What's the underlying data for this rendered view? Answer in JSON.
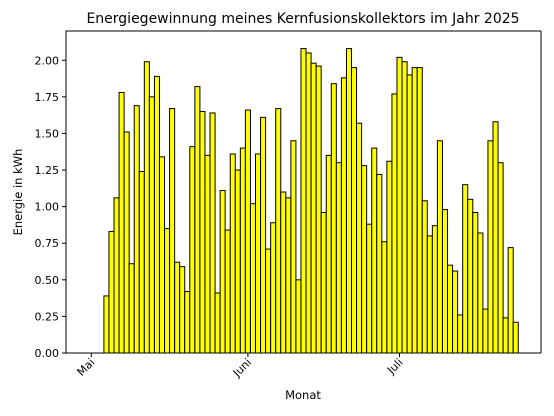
{
  "chart_data": {
    "type": "bar",
    "title": "Energiegewinnung meines Kernfusionskollektors im Jahr 2025",
    "xlabel": "Monat",
    "ylabel": "Energie in kWh",
    "x_start": "2025-05-04",
    "x_range": [
      "2025-04-26",
      "2025-07-29"
    ],
    "ylim": [
      0,
      2.2
    ],
    "y_ticks": [
      0.0,
      0.25,
      0.5,
      0.75,
      1.0,
      1.25,
      1.5,
      1.75,
      2.0
    ],
    "y_tick_labels": [
      "0.00",
      "0.25",
      "0.50",
      "0.75",
      "1.00",
      "1.25",
      "1.50",
      "1.75",
      "2.00"
    ],
    "x_ticks": [
      {
        "date": "2025-05-01",
        "label": "Mai"
      },
      {
        "date": "2025-06-01",
        "label": "Juni"
      },
      {
        "date": "2025-07-01",
        "label": "Juli"
      }
    ],
    "bar_color": "#ffff00",
    "edge_color": "#000000",
    "grid": false,
    "values": [
      0.39,
      0.83,
      1.06,
      1.78,
      1.51,
      0.61,
      1.69,
      1.24,
      1.99,
      1.75,
      1.89,
      1.34,
      0.85,
      1.67,
      0.62,
      0.59,
      0.42,
      1.41,
      1.82,
      1.65,
      1.35,
      1.64,
      0.41,
      1.11,
      0.84,
      1.36,
      1.25,
      1.4,
      1.66,
      1.02,
      1.36,
      1.61,
      0.71,
      0.89,
      1.67,
      1.1,
      1.06,
      1.45,
      0.5,
      2.08,
      2.05,
      1.98,
      1.96,
      0.96,
      1.35,
      1.84,
      1.3,
      1.88,
      2.08,
      1.95,
      1.57,
      1.28,
      0.88,
      1.4,
      1.22,
      0.76,
      1.31,
      1.77,
      2.02,
      1.99,
      1.9,
      1.95,
      1.95,
      1.04,
      0.8,
      0.87,
      1.45,
      0.98,
      0.6,
      0.56,
      0.26,
      1.15,
      1.05,
      0.96,
      0.82,
      0.3,
      1.45,
      1.58,
      1.3,
      0.24,
      0.72,
      0.21
    ]
  }
}
